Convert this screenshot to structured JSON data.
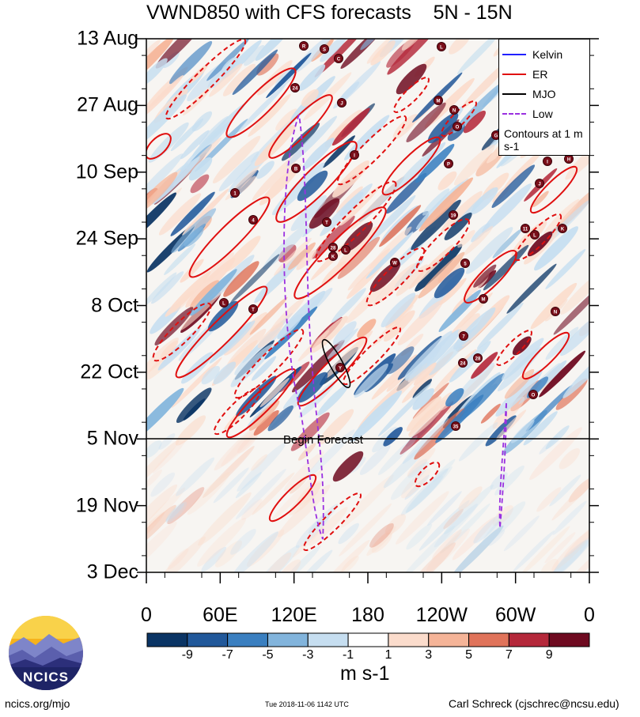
{
  "title": "VWND850 with CFS forecasts    5N - 15N",
  "chart_data": {
    "type": "heatmap",
    "variable": "VWND850",
    "x_ticks": [
      "0",
      "60E",
      "120E",
      "180",
      "120W",
      "60W",
      "0"
    ],
    "y_ticks": [
      "13 Aug",
      "27 Aug",
      "10 Sep",
      "24 Sep",
      "8 Oct",
      "22 Oct",
      "5 Nov",
      "19 Nov",
      "3 Dec"
    ],
    "colorbar": {
      "tick_labels": [
        "-9",
        "-7",
        "-5",
        "-3",
        "-1",
        "1",
        "3",
        "5",
        "7",
        "9"
      ],
      "colors": [
        "#0a3464",
        "#21589a",
        "#3a7fc0",
        "#82b4dc",
        "#c6def0",
        "#ffffff",
        "#fbdccc",
        "#f5b498",
        "#e0735a",
        "#b4283a",
        "#6e0a20"
      ],
      "units": "m s-1"
    },
    "forecast_start": "5 Nov",
    "forecast_label": "Begin Forecast",
    "legend": {
      "placement": "top-right",
      "entries": [
        {
          "name": "Kelvin",
          "color": "#2020ff"
        },
        {
          "name": "ER",
          "color": "#e01010"
        },
        {
          "name": "MJO",
          "color": "#000000"
        },
        {
          "name": "Low",
          "color": "#9a30e0"
        }
      ],
      "note": "Contours at 1 m s-1"
    },
    "storm_labels": [
      "R",
      "S",
      "C",
      "24",
      "J",
      "B",
      "I",
      "1",
      "4",
      "T",
      "28",
      "L",
      "K",
      "W",
      "L",
      "T",
      "Y",
      "L",
      "M",
      "N",
      "O",
      "G",
      "P",
      "I",
      "H",
      "J",
      "19",
      "11",
      "L",
      "K",
      "5",
      "7",
      "M",
      "N",
      "24",
      "28",
      "O",
      "35"
    ]
  },
  "footer": {
    "left": "ncics.org/mjo",
    "middle": "Tue 2018-11-06 1142 UTC",
    "right": "Carl Schreck (cjschrec@ncsu.edu)"
  },
  "logo_text": "NCICS"
}
